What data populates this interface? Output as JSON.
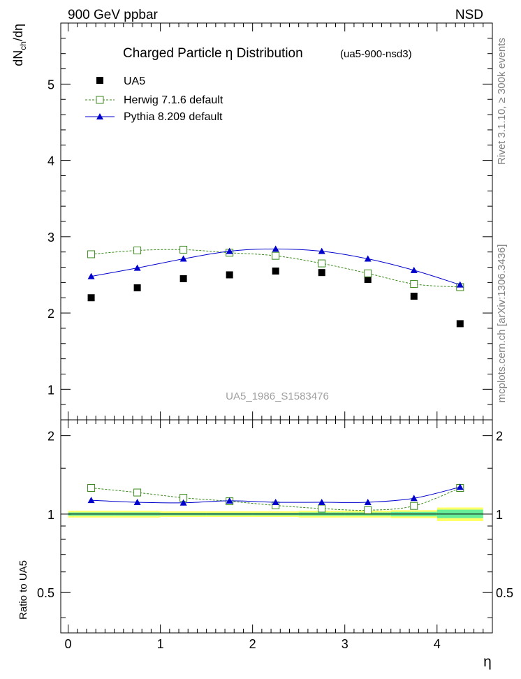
{
  "header": {
    "left_label": "900 GeV ppbar",
    "right_label": "NSD"
  },
  "side_text": {
    "rivet": "Rivet 3.1.10, ≥ 300k events",
    "mcplots": "mcplots.cern.ch [arXiv:1306.3436]"
  },
  "chart_data": {
    "type": "scatter",
    "title": "Charged Particle  η Distribution",
    "subtitle": "(ua5-900-nsd3)",
    "watermark": "UA5_1986_S1583476",
    "xlabel": "η",
    "ylabel_main": "dN_ch/dη",
    "ylabel_ratio": "Ratio to UA5",
    "xlim": [
      -0.08,
      4.6
    ],
    "ylim_main": [
      0.6,
      5.8
    ],
    "ylim_ratio": [
      0.35,
      2.3
    ],
    "x_ticks": [
      "0",
      "1",
      "2",
      "3",
      "4"
    ],
    "y_ticks_main": [
      "1",
      "2",
      "3",
      "4",
      "5"
    ],
    "y_ticks_ratio": [
      "0.5",
      "1",
      "2"
    ],
    "x": [
      0.25,
      0.75,
      1.25,
      1.75,
      2.25,
      2.75,
      3.25,
      3.75,
      4.25
    ],
    "series": [
      {
        "name": "UA5",
        "marker": "filled-square",
        "color": "#000000",
        "values": [
          2.2,
          2.33,
          2.45,
          2.5,
          2.55,
          2.53,
          2.44,
          2.22,
          1.86
        ],
        "ratio": [
          1.0,
          1.0,
          1.0,
          1.0,
          1.0,
          1.0,
          1.0,
          1.0,
          1.0
        ]
      },
      {
        "name": "Herwig 7.1.6 default",
        "marker": "open-square",
        "line": "dashed",
        "color": "#3a8a1a",
        "values": [
          2.77,
          2.82,
          2.83,
          2.79,
          2.75,
          2.65,
          2.52,
          2.38,
          2.34
        ],
        "ratio": [
          1.26,
          1.21,
          1.155,
          1.12,
          1.08,
          1.05,
          1.035,
          1.075,
          1.26
        ]
      },
      {
        "name": "Pythia 8.209 default",
        "marker": "filled-triangle",
        "line": "solid",
        "color": "#0000cc",
        "values": [
          2.48,
          2.59,
          2.71,
          2.81,
          2.84,
          2.81,
          2.71,
          2.56,
          2.37
        ],
        "ratio": [
          1.13,
          1.11,
          1.105,
          1.125,
          1.11,
          1.11,
          1.11,
          1.15,
          1.27
        ]
      }
    ],
    "uncertainty_bands": [
      {
        "x_range": [
          0.0,
          0.5
        ],
        "yellow": [
          0.97,
          1.03
        ],
        "green": [
          0.985,
          1.015
        ]
      },
      {
        "x_range": [
          0.5,
          1.0
        ],
        "yellow": [
          0.97,
          1.03
        ],
        "green": [
          0.985,
          1.015
        ]
      },
      {
        "x_range": [
          1.0,
          1.5
        ],
        "yellow": [
          0.975,
          1.025
        ],
        "green": [
          0.988,
          1.012
        ]
      },
      {
        "x_range": [
          1.5,
          2.0
        ],
        "yellow": [
          0.975,
          1.025
        ],
        "green": [
          0.988,
          1.012
        ]
      },
      {
        "x_range": [
          2.0,
          2.5
        ],
        "yellow": [
          0.975,
          1.025
        ],
        "green": [
          0.988,
          1.012
        ]
      },
      {
        "x_range": [
          2.5,
          3.0
        ],
        "yellow": [
          0.97,
          1.03
        ],
        "green": [
          0.985,
          1.015
        ]
      },
      {
        "x_range": [
          3.0,
          3.5
        ],
        "yellow": [
          0.97,
          1.03
        ],
        "green": [
          0.985,
          1.015
        ]
      },
      {
        "x_range": [
          3.5,
          4.0
        ],
        "yellow": [
          0.965,
          1.035
        ],
        "green": [
          0.98,
          1.02
        ]
      },
      {
        "x_range": [
          4.0,
          4.5
        ],
        "yellow": [
          0.94,
          1.06
        ],
        "green": [
          0.965,
          1.04
        ]
      }
    ],
    "band_colors": {
      "yellow": "#ffff66",
      "green": "#66ee99"
    }
  }
}
